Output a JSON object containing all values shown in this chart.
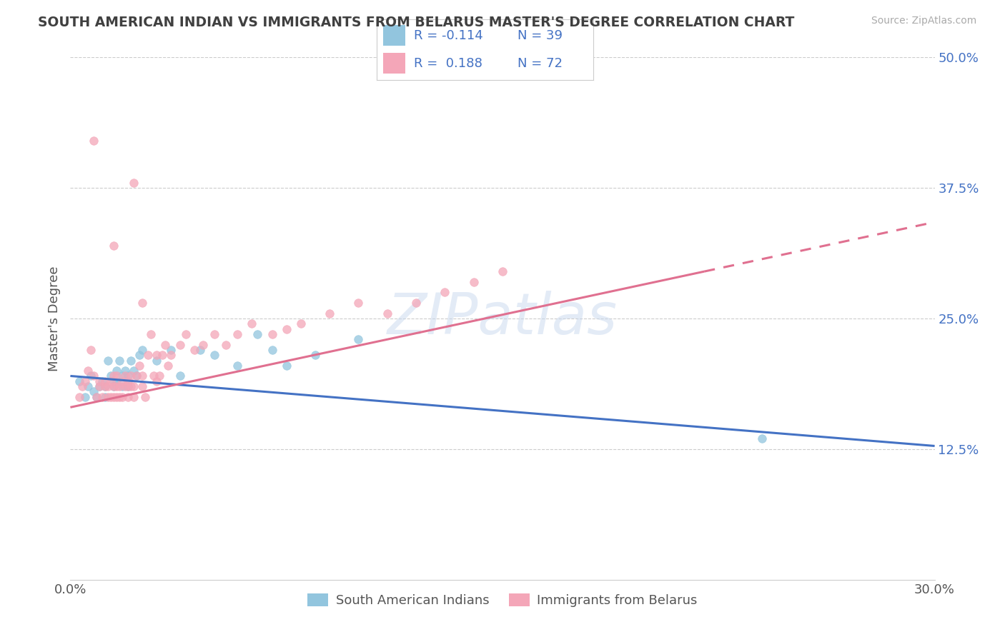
{
  "title": "SOUTH AMERICAN INDIAN VS IMMIGRANTS FROM BELARUS MASTER'S DEGREE CORRELATION CHART",
  "source": "Source: ZipAtlas.com",
  "ylabel": "Master's Degree",
  "xlim": [
    0.0,
    0.3
  ],
  "ylim": [
    0.0,
    0.5
  ],
  "ytick_labels": [
    "12.5%",
    "25.0%",
    "37.5%",
    "50.0%"
  ],
  "ytick_values": [
    0.125,
    0.25,
    0.375,
    0.5
  ],
  "xtick_values": [
    0.0,
    0.3
  ],
  "xtick_labels": [
    "0.0%",
    "30.0%"
  ],
  "legend_labels": [
    "South American Indians",
    "Immigrants from Belarus"
  ],
  "legend_r_blue": "R = -0.114",
  "legend_n_blue": "N = 39",
  "legend_r_pink": "R =  0.188",
  "legend_n_pink": "N = 72",
  "color_blue": "#92c5de",
  "color_pink": "#f4a6b8",
  "color_blue_dark": "#4472c4",
  "color_pink_dark": "#e05a7a",
  "color_title": "#404040",
  "color_r_values": "#4472c4",
  "background_color": "#ffffff",
  "watermark": "ZIPatlas",
  "blue_points_x": [
    0.003,
    0.005,
    0.006,
    0.007,
    0.008,
    0.009,
    0.01,
    0.011,
    0.012,
    0.012,
    0.013,
    0.014,
    0.015,
    0.015,
    0.016,
    0.016,
    0.017,
    0.018,
    0.018,
    0.019,
    0.02,
    0.02,
    0.021,
    0.022,
    0.023,
    0.024,
    0.025,
    0.03,
    0.035,
    0.038,
    0.045,
    0.05,
    0.058,
    0.065,
    0.07,
    0.075,
    0.085,
    0.1,
    0.24
  ],
  "blue_points_y": [
    0.19,
    0.175,
    0.185,
    0.195,
    0.18,
    0.175,
    0.185,
    0.19,
    0.175,
    0.185,
    0.21,
    0.195,
    0.185,
    0.19,
    0.2,
    0.19,
    0.21,
    0.195,
    0.185,
    0.2,
    0.195,
    0.185,
    0.21,
    0.2,
    0.195,
    0.215,
    0.22,
    0.21,
    0.22,
    0.195,
    0.22,
    0.215,
    0.205,
    0.235,
    0.22,
    0.205,
    0.215,
    0.23,
    0.135
  ],
  "pink_points_x": [
    0.003,
    0.004,
    0.005,
    0.006,
    0.007,
    0.008,
    0.009,
    0.01,
    0.01,
    0.011,
    0.012,
    0.012,
    0.013,
    0.013,
    0.014,
    0.014,
    0.015,
    0.015,
    0.015,
    0.016,
    0.016,
    0.016,
    0.017,
    0.017,
    0.018,
    0.018,
    0.019,
    0.019,
    0.02,
    0.02,
    0.02,
    0.021,
    0.021,
    0.022,
    0.022,
    0.023,
    0.024,
    0.025,
    0.025,
    0.026,
    0.027,
    0.028,
    0.029,
    0.03,
    0.031,
    0.032,
    0.033,
    0.034,
    0.035,
    0.038,
    0.04,
    0.043,
    0.046,
    0.05,
    0.054,
    0.058,
    0.063,
    0.07,
    0.075,
    0.08,
    0.09,
    0.1,
    0.11,
    0.12,
    0.13,
    0.14,
    0.15,
    0.015,
    0.008,
    0.022,
    0.025,
    0.03
  ],
  "pink_points_y": [
    0.175,
    0.185,
    0.19,
    0.2,
    0.22,
    0.195,
    0.175,
    0.185,
    0.19,
    0.175,
    0.185,
    0.19,
    0.175,
    0.185,
    0.19,
    0.175,
    0.185,
    0.175,
    0.195,
    0.175,
    0.185,
    0.195,
    0.175,
    0.185,
    0.175,
    0.19,
    0.185,
    0.195,
    0.175,
    0.185,
    0.19,
    0.185,
    0.195,
    0.175,
    0.185,
    0.195,
    0.205,
    0.185,
    0.195,
    0.175,
    0.215,
    0.235,
    0.195,
    0.215,
    0.195,
    0.215,
    0.225,
    0.205,
    0.215,
    0.225,
    0.235,
    0.22,
    0.225,
    0.235,
    0.225,
    0.235,
    0.245,
    0.235,
    0.24,
    0.245,
    0.255,
    0.265,
    0.255,
    0.265,
    0.275,
    0.285,
    0.295,
    0.32,
    0.42,
    0.38,
    0.265,
    0.19
  ]
}
